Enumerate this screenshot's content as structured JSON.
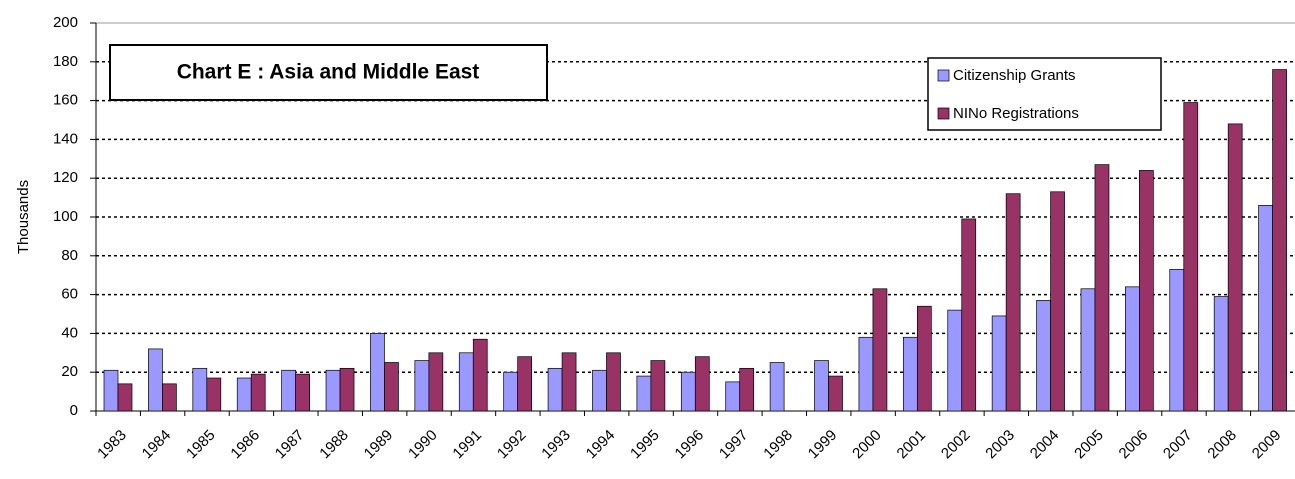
{
  "chart_data": {
    "type": "bar",
    "title": "Chart E : Asia and Middle East",
    "y_label": "Thousands",
    "categories": [
      "1983",
      "1984",
      "1985",
      "1986",
      "1987",
      "1988",
      "1989",
      "1990",
      "1991",
      "1992",
      "1993",
      "1994",
      "1995",
      "1996",
      "1997",
      "1998",
      "1999",
      "2000",
      "2001",
      "2002",
      "2003",
      "2004",
      "2005",
      "2006",
      "2007",
      "2008",
      "2009"
    ],
    "series": [
      {
        "name": "Citizenship Grants",
        "color": "#9999ff",
        "values": [
          21,
          32,
          22,
          17,
          21,
          21,
          40,
          26,
          30,
          20,
          22,
          21,
          18,
          20,
          15,
          25,
          26,
          38,
          38,
          52,
          49,
          57,
          63,
          64,
          73,
          59,
          106
        ]
      },
      {
        "name": "NINo Registrations",
        "color": "#993366",
        "values": [
          14,
          14,
          17,
          19,
          19,
          22,
          25,
          30,
          37,
          28,
          30,
          30,
          26,
          28,
          22,
          null,
          18,
          63,
          54,
          99,
          112,
          113,
          127,
          124,
          159,
          148,
          176
        ]
      }
    ],
    "ylim": [
      0,
      200
    ],
    "yticks": [
      0,
      20,
      40,
      60,
      80,
      100,
      120,
      140,
      160,
      180,
      200
    ],
    "grid": true
  }
}
